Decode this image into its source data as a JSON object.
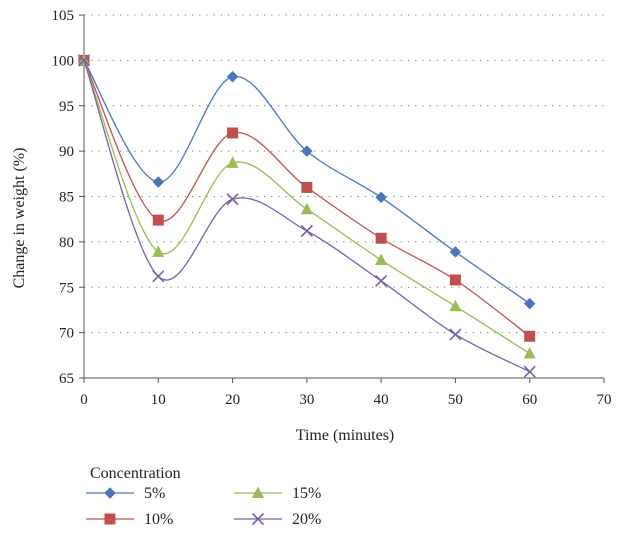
{
  "chart_data": {
    "type": "line",
    "xlabel": "Time (minutes)",
    "ylabel": "Change in weight (%)",
    "xlim": [
      0,
      70
    ],
    "ylim": [
      65,
      105
    ],
    "x_ticks": [
      0,
      10,
      20,
      30,
      40,
      50,
      60,
      70
    ],
    "y_ticks": [
      65,
      70,
      75,
      80,
      85,
      90,
      95,
      100,
      105
    ],
    "grid": "horizontal-dotted",
    "smooth": true,
    "x": [
      0,
      10,
      20,
      30,
      40,
      50,
      60
    ],
    "legend": {
      "title": "Concentration",
      "placement": "bottom-left"
    },
    "series": [
      {
        "name": "5%",
        "values": [
          100,
          86.6,
          98.2,
          90.0,
          84.9,
          78.9,
          73.2
        ],
        "color": "#4a76b8",
        "marker": "diamond"
      },
      {
        "name": "10%",
        "values": [
          100,
          82.4,
          92.0,
          86.0,
          80.4,
          75.8,
          69.6
        ],
        "color": "#c0504d",
        "marker": "square"
      },
      {
        "name": "15%",
        "values": [
          100,
          78.9,
          88.7,
          83.6,
          78.0,
          72.9,
          67.7
        ],
        "color": "#9bbb59",
        "marker": "triangle"
      },
      {
        "name": "20%",
        "values": [
          100,
          76.2,
          84.7,
          81.2,
          75.7,
          69.8,
          65.7
        ],
        "color": "#7b5ea7",
        "marker": "x"
      }
    ]
  }
}
